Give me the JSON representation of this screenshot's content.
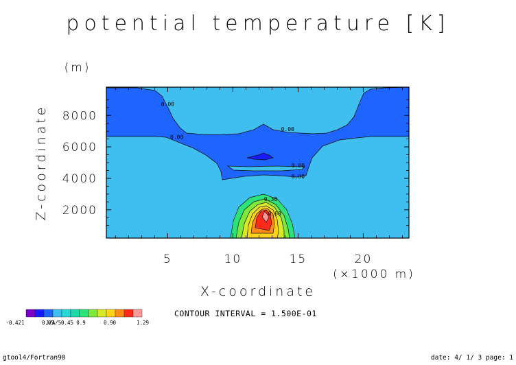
{
  "chart_data": {
    "type": "contour",
    "title": "potential temperature [K]",
    "xlabel": "X-coordinate",
    "ylabel": "Z-coordinate",
    "x_unit": "(×1000 m)",
    "y_unit": "(m)",
    "xlim": [
      0.3,
      23.5
    ],
    "ylim": [
      200,
      9800
    ],
    "x_ticks": [
      5,
      10,
      15,
      20
    ],
    "y_ticks": [
      2000,
      4000,
      6000,
      8000
    ],
    "background_level_color": "#3fbfef",
    "contour_interval_text": "CONTOUR INTERVAL = 1.500E-01",
    "contour_labels": [
      {
        "text": "0.00",
        "x": 5.0,
        "z": 8600
      },
      {
        "text": "0.00",
        "x": 14.2,
        "z": 7000
      },
      {
        "text": "0.00",
        "x": 5.7,
        "z": 6500
      },
      {
        "text": "0.00",
        "x": 15.0,
        "z": 4700
      },
      {
        "text": "0.00",
        "x": 15.0,
        "z": 4000
      },
      {
        "text": "0.30",
        "x": 12.9,
        "z": 2550
      },
      {
        "text": "0.60",
        "x": 13.2,
        "z": 1650
      }
    ],
    "colorbar": {
      "colors": [
        "#7a00c8",
        "#1a1aff",
        "#1e64ff",
        "#3fbfef",
        "#29d7d7",
        "#20d7a8",
        "#2be37a",
        "#7ee93c",
        "#d7e92a",
        "#ffd31d",
        "#ff8c1a",
        "#ff2b1a",
        "#ff9999"
      ],
      "tick_labels": [
        "-0.421",
        "0.05",
        "J/A/5",
        "0.45",
        "0.9",
        "0.90",
        "1.29"
      ]
    }
  },
  "footer": {
    "left": "gtool4/Fortran90",
    "right": "date: 4/ 1/ 3 page: 1"
  }
}
